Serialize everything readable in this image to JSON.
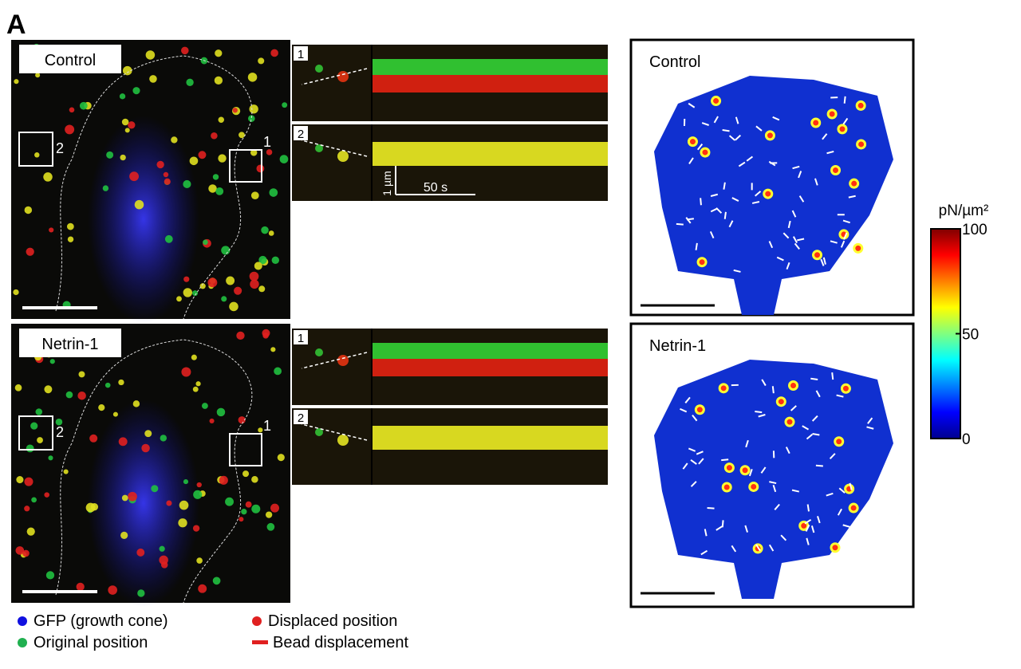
{
  "panel_label": "A",
  "rows": [
    {
      "condition": "Control",
      "box_labels": [
        "2",
        "1"
      ],
      "kymographs": [
        "1",
        "2"
      ],
      "force_map_label": "Control"
    },
    {
      "condition": "Netrin-1",
      "box_labels": [
        "2",
        "1"
      ],
      "kymographs": [
        "1",
        "2"
      ],
      "force_map_label": "Netrin-1"
    }
  ],
  "kymograph_scale": {
    "length": "1 µm",
    "time": "50 s"
  },
  "colorbar": {
    "label": "pN/µm²",
    "lim": [
      0,
      100
    ],
    "ticks": [
      0,
      50,
      100
    ]
  },
  "legend": [
    "GFP (growth cone)",
    "Displaced position",
    "Original position",
    "Bead displacement"
  ]
}
